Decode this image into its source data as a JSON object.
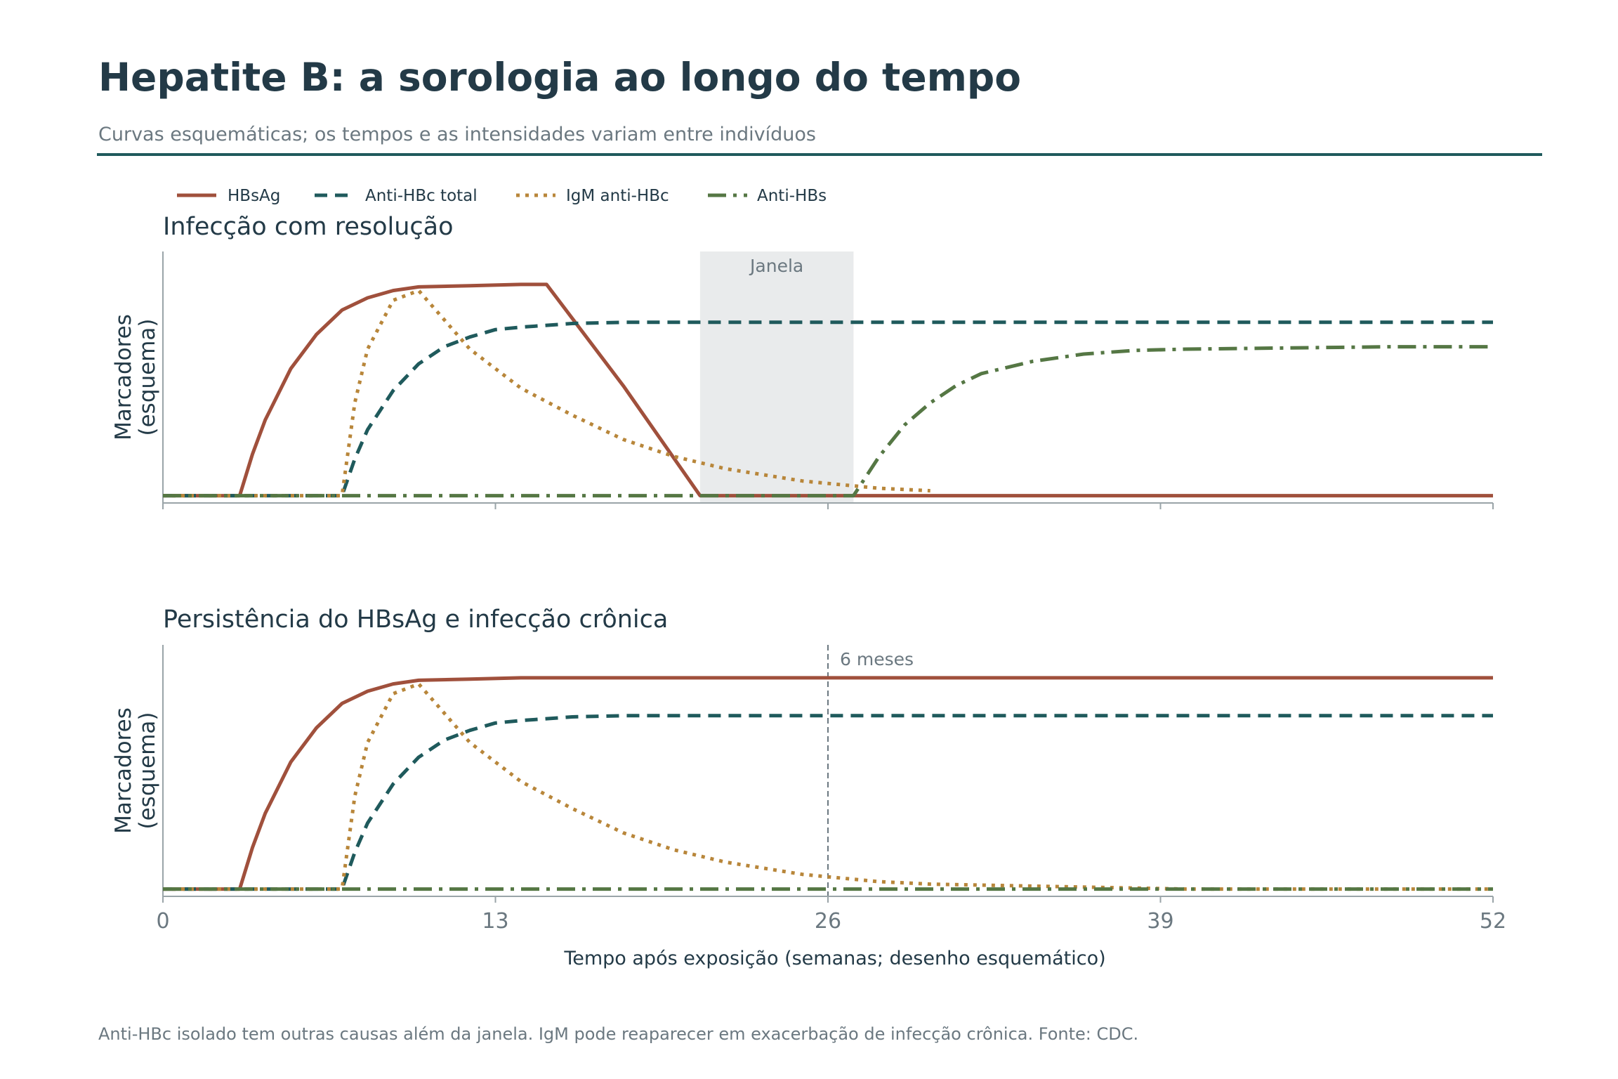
{
  "header": {
    "title": "Hepatite B: a sorologia ao longo do tempo",
    "subtitle": "Curvas esquemáticas; os tempos e as intensidades variam entre indivíduos"
  },
  "footer": {
    "note": "Anti-HBc isolado tem outras causas além da janela. IgM pode reaparecer em exacerbação de infecção crônica. Fonte: CDC."
  },
  "colors": {
    "hbsag": "#a0503c",
    "anti_hbc": "#1f5a5c",
    "igm": "#b8863a",
    "anti_hbs": "#557744",
    "text": "#233a47",
    "muted": "#6b7880",
    "axis": "#9aa4a8",
    "window_fill": "#e9ebec"
  },
  "chart_data": [
    {
      "type": "line",
      "title": "Infecção com resolução",
      "ylabel": "Marcadores\n(esquema)",
      "xlabel": "",
      "xlim": [
        0,
        52
      ],
      "ylim": [
        -0.03,
        1.0
      ],
      "xticks": [
        0,
        13,
        26,
        39,
        52
      ],
      "show_tick_labels": false,
      "legend": "top-left",
      "window": {
        "label": "Janela",
        "x": [
          21,
          27
        ]
      },
      "series": [
        {
          "name": "HBsAg",
          "x": [
            0,
            3,
            3.5,
            4,
            5,
            6,
            7,
            8,
            9,
            10,
            12,
            14,
            15,
            18,
            21,
            24,
            30,
            40,
            52
          ],
          "y": [
            0,
            0,
            0.17,
            0.31,
            0.52,
            0.66,
            0.76,
            0.81,
            0.84,
            0.855,
            0.86,
            0.865,
            0.865,
            0.45,
            0,
            0,
            0,
            0,
            0
          ]
        },
        {
          "name": "Anti-HBc total",
          "x": [
            0,
            7,
            7.5,
            8,
            9,
            10,
            11,
            12,
            13,
            14,
            16,
            18,
            22,
            30,
            40,
            52
          ],
          "y": [
            0,
            0,
            0.15,
            0.27,
            0.43,
            0.54,
            0.61,
            0.65,
            0.68,
            0.69,
            0.705,
            0.71,
            0.71,
            0.71,
            0.71,
            0.71
          ]
        },
        {
          "name": "IgM anti-HBc",
          "x": [
            0,
            7,
            7.5,
            8,
            9,
            10,
            11,
            12,
            14,
            16,
            18,
            20,
            22,
            25,
            28,
            30
          ],
          "y": [
            0,
            0,
            0.38,
            0.6,
            0.8,
            0.84,
            0.72,
            0.6,
            0.44,
            0.33,
            0.23,
            0.16,
            0.11,
            0.06,
            0.03,
            0.02
          ]
        },
        {
          "name": "Anti-HBs",
          "x": [
            0,
            27,
            28,
            29,
            30,
            31,
            32,
            34,
            36,
            38,
            40,
            44,
            48,
            52
          ],
          "y": [
            0,
            0,
            0.16,
            0.29,
            0.38,
            0.45,
            0.5,
            0.55,
            0.58,
            0.595,
            0.6,
            0.605,
            0.61,
            0.61
          ]
        }
      ]
    },
    {
      "type": "line",
      "title": "Persistência do HBsAg e infecção crônica",
      "ylabel": "Marcadores\n(esquema)",
      "xlabel": "Tempo após exposição (semanas; desenho esquemático)",
      "xlim": [
        0,
        52
      ],
      "ylim": [
        -0.03,
        1.0
      ],
      "xticks": [
        0,
        13,
        26,
        39,
        52
      ],
      "xticklabels": [
        "0",
        "13",
        "26",
        "39",
        "52"
      ],
      "show_tick_labels": true,
      "marker_line": {
        "label": "6 meses",
        "x": 26
      },
      "series": [
        {
          "name": "HBsAg",
          "x": [
            0,
            3,
            3.5,
            4,
            5,
            6,
            7,
            8,
            9,
            10,
            12,
            14,
            18,
            26,
            40,
            52
          ],
          "y": [
            0,
            0,
            0.17,
            0.31,
            0.52,
            0.66,
            0.76,
            0.81,
            0.84,
            0.855,
            0.86,
            0.865,
            0.865,
            0.865,
            0.865,
            0.865
          ]
        },
        {
          "name": "Anti-HBc total",
          "x": [
            0,
            7,
            7.5,
            8,
            9,
            10,
            11,
            12,
            13,
            14,
            16,
            18,
            22,
            30,
            40,
            52
          ],
          "y": [
            0,
            0,
            0.15,
            0.27,
            0.43,
            0.54,
            0.61,
            0.65,
            0.68,
            0.69,
            0.705,
            0.71,
            0.71,
            0.71,
            0.71,
            0.71
          ]
        },
        {
          "name": "IgM anti-HBc",
          "x": [
            0,
            7,
            7.5,
            8,
            9,
            10,
            11,
            12,
            14,
            16,
            18,
            20,
            22,
            25,
            28,
            30,
            40,
            52
          ],
          "y": [
            0,
            0,
            0.38,
            0.6,
            0.8,
            0.84,
            0.72,
            0.6,
            0.44,
            0.33,
            0.23,
            0.16,
            0.11,
            0.06,
            0.03,
            0.02,
            0,
            0
          ]
        },
        {
          "name": "Anti-HBs",
          "x": [
            0,
            26,
            40,
            52
          ],
          "y": [
            0,
            0,
            0,
            0
          ]
        }
      ]
    }
  ]
}
